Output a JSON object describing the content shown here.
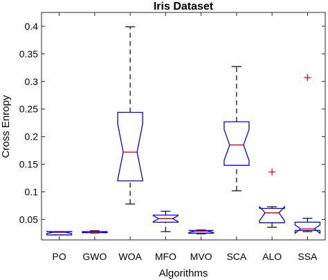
{
  "chart_data": {
    "type": "box",
    "title": "Iris Dataset",
    "xlabel": "Algorithms",
    "ylabel": "Cross Enropy",
    "ylim": [
      0.013,
      0.425
    ],
    "yticks": [
      0.05,
      0.1,
      0.15,
      0.2,
      0.25,
      0.3,
      0.35,
      0.4
    ],
    "ytick_labels": [
      "0.05",
      "0.1",
      "0.15",
      "0.2",
      "0.25",
      "0.3",
      "0.35",
      "0.4"
    ],
    "grid": false,
    "notched": true,
    "categories": [
      "PO",
      "GWO",
      "WOA",
      "MFO",
      "MVO",
      "SCA",
      "ALO",
      "SSA"
    ],
    "boxes": [
      {
        "label": "PO",
        "whisker_low": 0.022,
        "q1": 0.022,
        "median": 0.0265,
        "q3": 0.028,
        "whisker_high": 0.028,
        "notch_low": 0.0245,
        "notch_high": 0.0285,
        "outliers": []
      },
      {
        "label": "GWO",
        "whisker_low": 0.0255,
        "q1": 0.026,
        "median": 0.027,
        "q3": 0.028,
        "whisker_high": 0.0295,
        "notch_low": 0.0262,
        "notch_high": 0.0278,
        "outliers": []
      },
      {
        "label": "WOA",
        "whisker_low": 0.078,
        "q1": 0.12,
        "median": 0.172,
        "q3": 0.244,
        "whisker_high": 0.399,
        "notch_low": 0.122,
        "notch_high": 0.223,
        "outliers": []
      },
      {
        "label": "MFO",
        "whisker_low": 0.028,
        "q1": 0.045,
        "median": 0.0515,
        "q3": 0.058,
        "whisker_high": 0.065,
        "notch_low": 0.046,
        "notch_high": 0.057,
        "outliers": []
      },
      {
        "label": "MVO",
        "whisker_low": 0.024,
        "q1": 0.025,
        "median": 0.028,
        "q3": 0.03,
        "whisker_high": 0.031,
        "notch_low": 0.026,
        "notch_high": 0.03,
        "outliers": []
      },
      {
        "label": "SCA",
        "whisker_low": 0.102,
        "q1": 0.148,
        "median": 0.185,
        "q3": 0.227,
        "whisker_high": 0.327,
        "notch_low": 0.157,
        "notch_high": 0.213,
        "outliers": []
      },
      {
        "label": "ALO",
        "whisker_low": 0.036,
        "q1": 0.044,
        "median": 0.062,
        "q3": 0.07,
        "whisker_high": 0.073,
        "notch_low": 0.048,
        "notch_high": 0.073,
        "outliers": [
          0.136
        ]
      },
      {
        "label": "SSA",
        "whisker_low": 0.028,
        "q1": 0.03,
        "median": 0.033,
        "q3": 0.045,
        "whisker_high": 0.052,
        "notch_low": 0.025,
        "notch_high": 0.04,
        "outliers": [
          0.307
        ]
      }
    ],
    "colors": {
      "box": "#0000ff",
      "median": "#ff0000",
      "whisker": "#000000",
      "outlier": "#ff0000",
      "axes": "#262626"
    }
  }
}
